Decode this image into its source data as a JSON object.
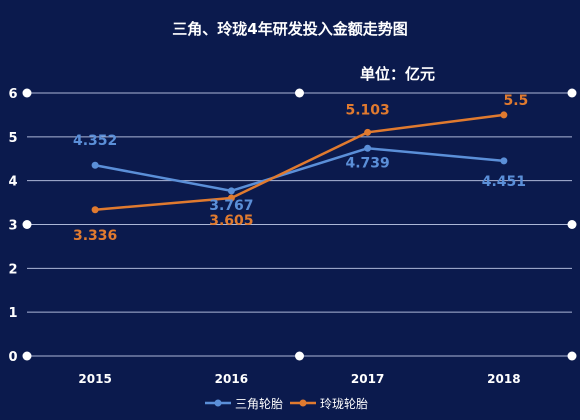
{
  "chart_data": {
    "type": "line",
    "title": "三角、玲珑4年研发投入金额走势图",
    "unit_label": "单位：亿元",
    "categories": [
      "2015",
      "2016",
      "2017",
      "2018"
    ],
    "ylim": [
      0,
      6
    ],
    "yticks": [
      "0",
      "1",
      "2",
      "3",
      "4",
      "5",
      "6"
    ],
    "grid": true,
    "legend_position": "bottom",
    "series": [
      {
        "name": "三角轮胎",
        "color": "#5b8fd8",
        "values": [
          4.352,
          3.767,
          4.739,
          4.451
        ],
        "labels": [
          "4.352",
          "3.767",
          "4.739",
          "4.451"
        ]
      },
      {
        "name": "玲珑轮胎",
        "color": "#e07a2f",
        "values": [
          3.336,
          3.605,
          5.103,
          5.5
        ],
        "labels": [
          "3.336",
          "3.605",
          "5.103",
          "5.5"
        ]
      }
    ]
  }
}
